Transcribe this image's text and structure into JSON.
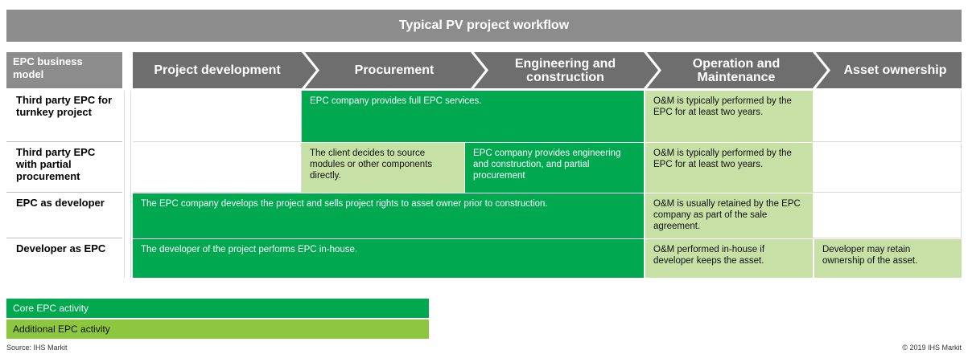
{
  "title": "Typical PV project workflow",
  "header": {
    "model_label": "EPC business model",
    "stages": [
      "Project development",
      "Procurement",
      "Engineering and construction",
      "Operation and Maintenance",
      "Asset ownership"
    ]
  },
  "rows": [
    {
      "label": "Third party EPC for turnkey project",
      "cells": [
        "EPC company provides full EPC services.",
        "O&M is typically performed by the EPC for at least two years."
      ]
    },
    {
      "label": "Third party EPC with partial procurement",
      "cells": [
        "The client decides to source modules or other components directly.",
        "EPC company provides engineering and construction, and partial procurement",
        "O&M is typically performed by the EPC for at least two years."
      ]
    },
    {
      "label": "EPC as developer",
      "cells": [
        "The EPC company develops the project and sells project rights to asset owner prior to construction.",
        "O&M is usually retained by the EPC company as part of the sale agreement."
      ]
    },
    {
      "label": "Developer as EPC",
      "cells": [
        "The developer of the project performs EPC in-house.",
        "O&M performed in-house if developer keeps the asset.",
        "Developer may retain ownership of the asset."
      ]
    }
  ],
  "legend": [
    "Core EPC activity",
    "Additional EPC activity"
  ],
  "source": "Source: IHS Markit",
  "copyright": "© 2019 IHS Markit"
}
